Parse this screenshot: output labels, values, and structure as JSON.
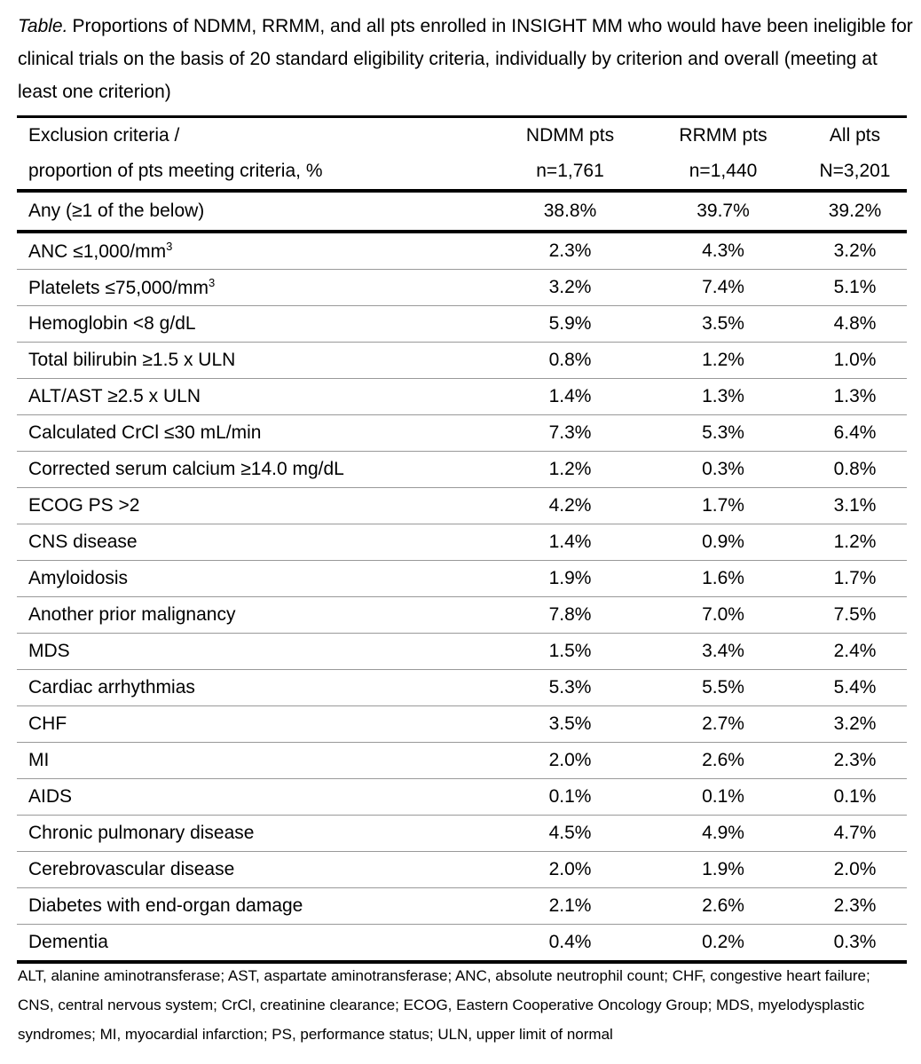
{
  "caption": {
    "label": "Table.",
    "text": "Proportions of NDMM, RRMM, and all pts enrolled in INSIGHT MM who would have been ineligible for clinical trials on the basis of 20 standard eligibility criteria, individually by criterion and overall (meeting at least one criterion)"
  },
  "table": {
    "columns": [
      [
        "Exclusion criteria /",
        "proportion of pts meeting criteria, %"
      ],
      [
        "NDMM pts",
        "n=1,761"
      ],
      [
        "RRMM pts",
        "n=1,440"
      ],
      [
        "All pts",
        "N=3,201"
      ]
    ],
    "summary_row": {
      "label": "Any (≥1 of the below)",
      "values": [
        "38.8%",
        "39.7%",
        "39.2%"
      ]
    },
    "rows": [
      {
        "label": "ANC ≤1,000/mm",
        "sup": "3",
        "values": [
          "2.3%",
          "4.3%",
          "3.2%"
        ]
      },
      {
        "label": "Platelets ≤75,000/mm",
        "sup": "3",
        "values": [
          "3.2%",
          "7.4%",
          "5.1%"
        ]
      },
      {
        "label": "Hemoglobin <8 g/dL",
        "values": [
          "5.9%",
          "3.5%",
          "4.8%"
        ]
      },
      {
        "label": "Total bilirubin ≥1.5 x ULN",
        "values": [
          "0.8%",
          "1.2%",
          "1.0%"
        ]
      },
      {
        "label": "ALT/AST ≥2.5 x ULN",
        "values": [
          "1.4%",
          "1.3%",
          "1.3%"
        ]
      },
      {
        "label": "Calculated CrCl ≤30 mL/min",
        "values": [
          "7.3%",
          "5.3%",
          "6.4%"
        ]
      },
      {
        "label": "Corrected serum calcium ≥14.0 mg/dL",
        "values": [
          "1.2%",
          "0.3%",
          "0.8%"
        ]
      },
      {
        "label": "ECOG PS >2",
        "values": [
          "4.2%",
          "1.7%",
          "3.1%"
        ]
      },
      {
        "label": "CNS disease",
        "values": [
          "1.4%",
          "0.9%",
          "1.2%"
        ]
      },
      {
        "label": "Amyloidosis",
        "values": [
          "1.9%",
          "1.6%",
          "1.7%"
        ]
      },
      {
        "label": "Another prior malignancy",
        "values": [
          "7.8%",
          "7.0%",
          "7.5%"
        ]
      },
      {
        "label": "MDS",
        "values": [
          "1.5%",
          "3.4%",
          "2.4%"
        ]
      },
      {
        "label": "Cardiac arrhythmias",
        "values": [
          "5.3%",
          "5.5%",
          "5.4%"
        ]
      },
      {
        "label": "CHF",
        "values": [
          "3.5%",
          "2.7%",
          "3.2%"
        ]
      },
      {
        "label": "MI",
        "values": [
          "2.0%",
          "2.6%",
          "2.3%"
        ]
      },
      {
        "label": "AIDS",
        "values": [
          "0.1%",
          "0.1%",
          "0.1%"
        ]
      },
      {
        "label": "Chronic pulmonary disease",
        "values": [
          "4.5%",
          "4.9%",
          "4.7%"
        ]
      },
      {
        "label": "Cerebrovascular disease",
        "values": [
          "2.0%",
          "1.9%",
          "2.0%"
        ]
      },
      {
        "label": "Diabetes with end-organ damage",
        "values": [
          "2.1%",
          "2.6%",
          "2.3%"
        ]
      },
      {
        "label": "Dementia",
        "values": [
          "0.4%",
          "0.2%",
          "0.3%"
        ]
      }
    ]
  },
  "footnote": "ALT, alanine aminotransferase; AST, aspartate aminotransferase; ANC, absolute neutrophil count; CHF, congestive heart failure; CNS, central nervous system; CrCl, creatinine clearance; ECOG, Eastern Cooperative Oncology Group; MDS, myelodysplastic syndromes; MI, myocardial infarction; PS, performance status; ULN, upper limit of normal"
}
